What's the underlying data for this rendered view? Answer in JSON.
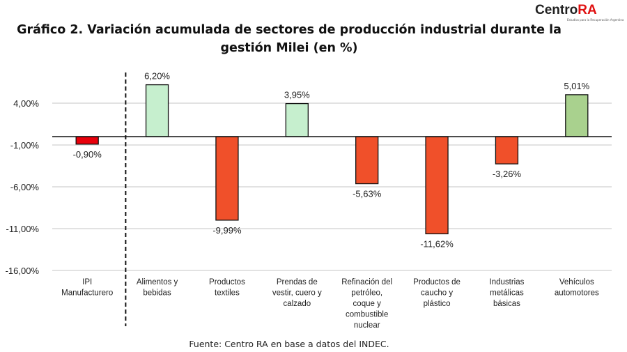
{
  "title_line1": "Gráfico 2. Variación acumulada de sectores de producción industrial durante la",
  "title_line2": "gestión Milei (en %)",
  "logo": {
    "text": "Centro",
    "accent": "RA",
    "subtitle": "Estudios para la Recuperación Argentina"
  },
  "source": "Fuente: Centro RA en base a datos del INDEC.",
  "chart_data": {
    "type": "bar",
    "categories": [
      [
        "IPI",
        "Manufacturero"
      ],
      [
        "Alimentos y",
        "bebidas"
      ],
      [
        "Productos",
        "textiles"
      ],
      [
        "Prendas de",
        "vestir, cuero y",
        "calzado"
      ],
      [
        "Refinación del",
        "petróleo,",
        "coque y",
        "combustible",
        "nuclear"
      ],
      [
        "Productos de",
        "caucho y",
        "plástico"
      ],
      [
        "Industrias",
        "metálicas",
        "básicas"
      ],
      [
        "Vehículos",
        "automotores"
      ]
    ],
    "values": [
      -0.9,
      6.2,
      -9.99,
      3.95,
      -5.63,
      -11.62,
      -3.26,
      5.01
    ],
    "data_labels": [
      "-0,90%",
      "6,20%",
      "-9,99%",
      "3,95%",
      "-5,63%",
      "-11,62%",
      "-3,26%",
      "5,01%"
    ],
    "colors": [
      "#e8000b",
      "#c6efce",
      "#f0502a",
      "#c6efce",
      "#f0502a",
      "#f0502a",
      "#f0502a",
      "#a9d18e"
    ],
    "yticks": [
      4,
      -1,
      -6,
      -11,
      -16
    ],
    "ytick_labels": [
      "4,00%",
      "-1,00%",
      "-6,00%",
      "-11,00%",
      "-16,00%"
    ],
    "ylim": [
      -16,
      8
    ],
    "grid": true,
    "separator_after_first": true
  }
}
